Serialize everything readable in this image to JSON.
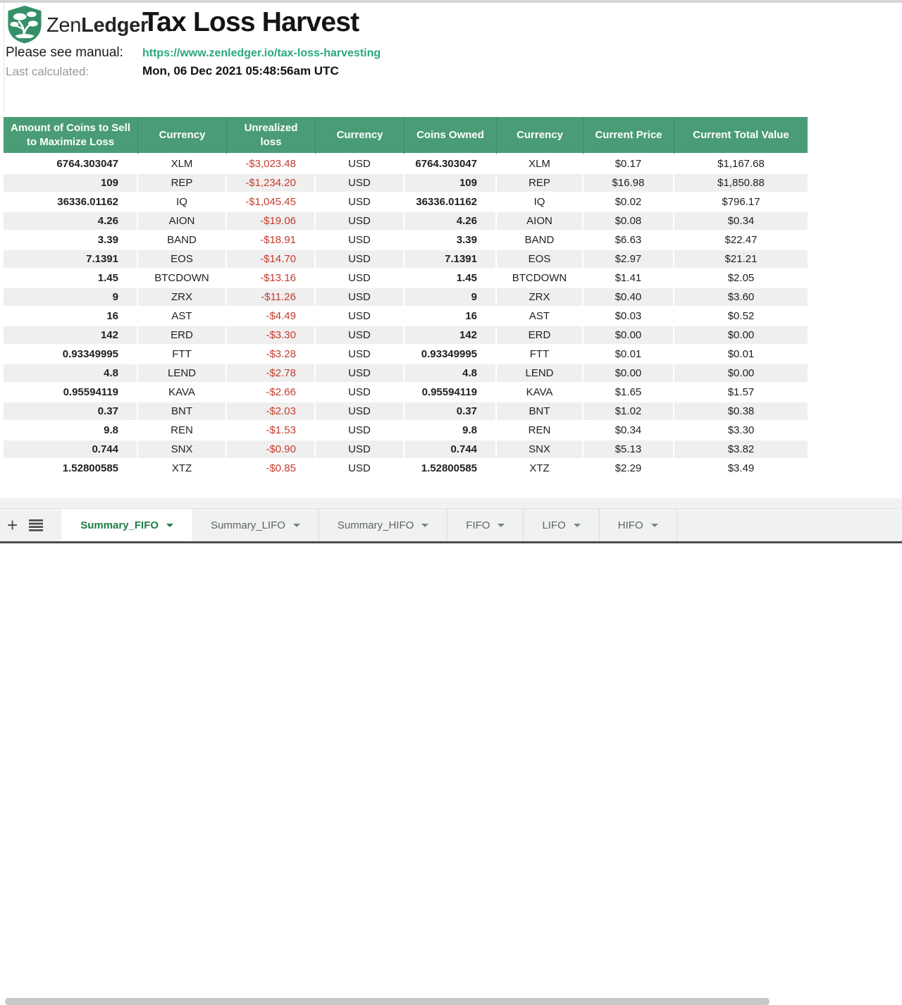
{
  "header": {
    "brand_zen": "Zen",
    "brand_ledger": "Ledger",
    "title": "Tax Loss Harvest",
    "manual_label": "Please see manual:",
    "manual_link": "https://www.zenledger.io/tax-loss-harvesting",
    "last_calculated_label": "Last calculated:",
    "last_calculated_value": "Mon, 06 Dec 2021 05:48:56am UTC"
  },
  "table": {
    "columns": [
      "Amount of Coins to Sell to Maximize Loss",
      "Currency",
      "Unrealized loss",
      "Currency",
      "Coins Owned",
      "Currency",
      "Current Price",
      "Current Total Value"
    ],
    "rows": [
      [
        "6764.303047",
        "XLM",
        "-$3,023.48",
        "USD",
        "6764.303047",
        "XLM",
        "$0.17",
        "$1,167.68"
      ],
      [
        "109",
        "REP",
        "-$1,234.20",
        "USD",
        "109",
        "REP",
        "$16.98",
        "$1,850.88"
      ],
      [
        "36336.01162",
        "IQ",
        "-$1,045.45",
        "USD",
        "36336.01162",
        "IQ",
        "$0.02",
        "$796.17"
      ],
      [
        "4.26",
        "AION",
        "-$19.06",
        "USD",
        "4.26",
        "AION",
        "$0.08",
        "$0.34"
      ],
      [
        "3.39",
        "BAND",
        "-$18.91",
        "USD",
        "3.39",
        "BAND",
        "$6.63",
        "$22.47"
      ],
      [
        "7.1391",
        "EOS",
        "-$14.70",
        "USD",
        "7.1391",
        "EOS",
        "$2.97",
        "$21.21"
      ],
      [
        "1.45",
        "BTCDOWN",
        "-$13.16",
        "USD",
        "1.45",
        "BTCDOWN",
        "$1.41",
        "$2.05"
      ],
      [
        "9",
        "ZRX",
        "-$11.26",
        "USD",
        "9",
        "ZRX",
        "$0.40",
        "$3.60"
      ],
      [
        "16",
        "AST",
        "-$4.49",
        "USD",
        "16",
        "AST",
        "$0.03",
        "$0.52"
      ],
      [
        "142",
        "ERD",
        "-$3.30",
        "USD",
        "142",
        "ERD",
        "$0.00",
        "$0.00"
      ],
      [
        "0.93349995",
        "FTT",
        "-$3.28",
        "USD",
        "0.93349995",
        "FTT",
        "$0.01",
        "$0.01"
      ],
      [
        "4.8",
        "LEND",
        "-$2.78",
        "USD",
        "4.8",
        "LEND",
        "$0.00",
        "$0.00"
      ],
      [
        "0.95594119",
        "KAVA",
        "-$2.66",
        "USD",
        "0.95594119",
        "KAVA",
        "$1.65",
        "$1.57"
      ],
      [
        "0.37",
        "BNT",
        "-$2.03",
        "USD",
        "0.37",
        "BNT",
        "$1.02",
        "$0.38"
      ],
      [
        "9.8",
        "REN",
        "-$1.53",
        "USD",
        "9.8",
        "REN",
        "$0.34",
        "$3.30"
      ],
      [
        "0.744",
        "SNX",
        "-$0.90",
        "USD",
        "0.744",
        "SNX",
        "$5.13",
        "$3.82"
      ],
      [
        "1.52800585",
        "XTZ",
        "-$0.85",
        "USD",
        "1.52800585",
        "XTZ",
        "$2.29",
        "$3.49"
      ]
    ]
  },
  "sheet_tabs": {
    "add_label": "+",
    "tabs": [
      {
        "label": "Summary_FIFO",
        "active": true
      },
      {
        "label": "Summary_LIFO",
        "active": false
      },
      {
        "label": "Summary_HIFO",
        "active": false
      },
      {
        "label": "FIFO",
        "active": false
      },
      {
        "label": "LIFO",
        "active": false
      },
      {
        "label": "HIFO",
        "active": false
      }
    ]
  },
  "icons": {
    "logo": "zenledger-shield-bonsai",
    "add_sheet": "plus",
    "all_sheets": "hamburger",
    "tab_menu": "caret-down"
  },
  "colors": {
    "header_green": "#4a9c76",
    "logo_green": "#35906a",
    "link_green": "#2aa87d",
    "active_tab_green": "#1e7d45",
    "loss_red": "#c53b2e",
    "stripe_gray": "#efefef"
  }
}
